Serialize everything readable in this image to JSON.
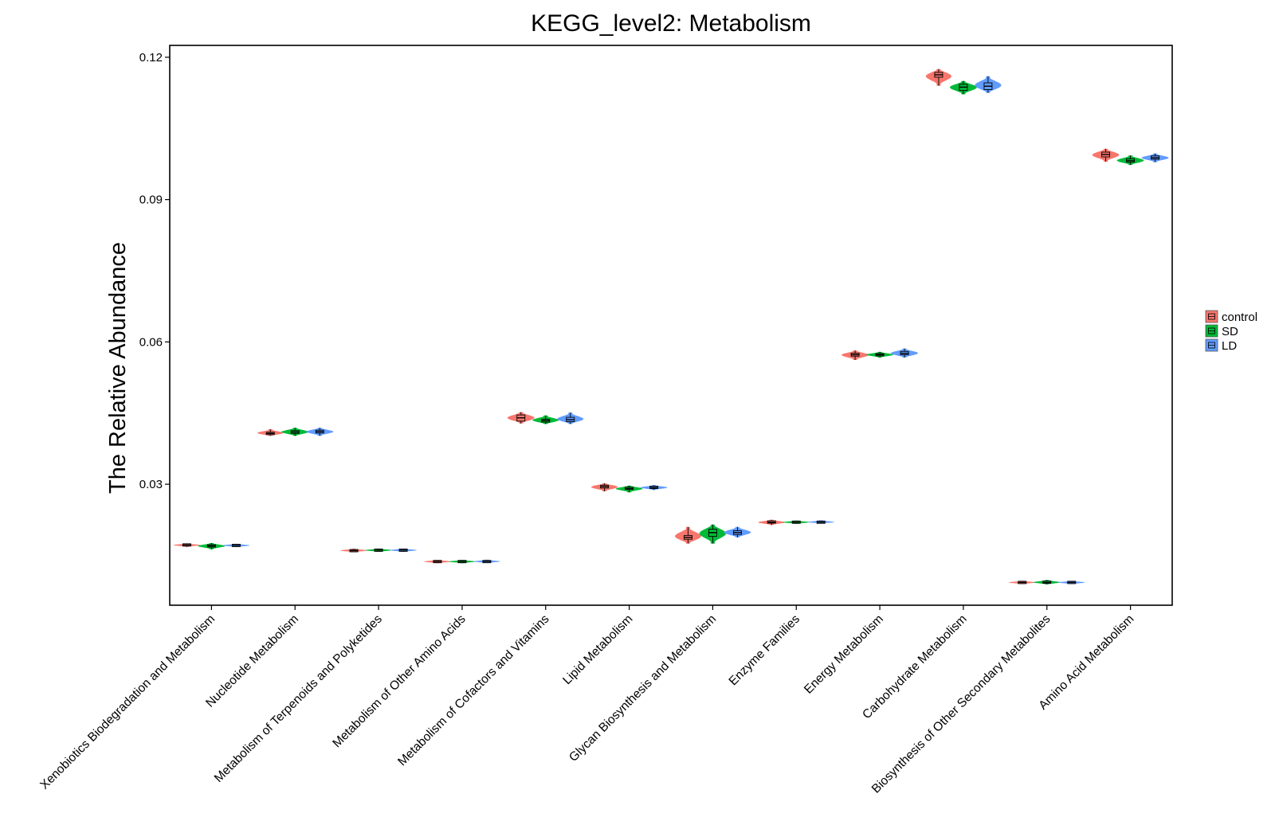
{
  "chart_data": {
    "type": "violin",
    "title": "KEGG_level2: Metabolism",
    "xlabel": "",
    "ylabel": "The Relative Abundance",
    "ylim": [
      0.0045,
      0.1225
    ],
    "yticks": [
      0.03,
      0.06,
      0.09,
      0.12
    ],
    "ytick_labels": [
      "0.03",
      "0.06",
      "0.09",
      "0.12"
    ],
    "grid": false,
    "legend_position": "right",
    "categories": [
      "Xenobiotics Biodegradation and Metabolism",
      "Nucleotide Metabolism",
      "Metabolism of Terpenoids and Polyketides",
      "Metabolism of Other Amino Acids",
      "Metabolism of Cofactors and Vitamins",
      "Lipid Metabolism",
      "Glycan Biosynthesis and Metabolism",
      "Enzyme Families",
      "Energy Metabolism",
      "Carbohydrate Metabolism",
      "Biosynthesis of Other Secondary Metabolites",
      "Amino Acid Metabolism"
    ],
    "series": [
      {
        "name": "control",
        "color": "#F8766D",
        "values": [
          {
            "median": 0.0172,
            "q1": 0.0171,
            "q3": 0.0173,
            "min": 0.0168,
            "max": 0.0175
          },
          {
            "median": 0.0407,
            "q1": 0.0405,
            "q3": 0.0409,
            "min": 0.0402,
            "max": 0.0416
          },
          {
            "median": 0.016,
            "q1": 0.0159,
            "q3": 0.0161,
            "min": 0.0157,
            "max": 0.0164
          },
          {
            "median": 0.0137,
            "q1": 0.0136,
            "q3": 0.0138,
            "min": 0.0134,
            "max": 0.014
          },
          {
            "median": 0.044,
            "q1": 0.0433,
            "q3": 0.0446,
            "min": 0.0428,
            "max": 0.0452
          },
          {
            "median": 0.0295,
            "q1": 0.0292,
            "q3": 0.0298,
            "min": 0.0285,
            "max": 0.0302
          },
          {
            "median": 0.0188,
            "q1": 0.0184,
            "q3": 0.0192,
            "min": 0.0175,
            "max": 0.021
          },
          {
            "median": 0.022,
            "q1": 0.0219,
            "q3": 0.0222,
            "min": 0.0214,
            "max": 0.0225
          },
          {
            "median": 0.0573,
            "q1": 0.057,
            "q3": 0.0576,
            "min": 0.0562,
            "max": 0.0582
          },
          {
            "median": 0.1163,
            "q1": 0.1158,
            "q3": 0.1168,
            "min": 0.114,
            "max": 0.1175
          },
          {
            "median": 0.0093,
            "q1": 0.0092,
            "q3": 0.0094,
            "min": 0.009,
            "max": 0.0096
          },
          {
            "median": 0.0995,
            "q1": 0.099,
            "q3": 0.1,
            "min": 0.098,
            "max": 0.1007
          }
        ]
      },
      {
        "name": "SD",
        "color": "#00BA38",
        "values": [
          {
            "median": 0.017,
            "q1": 0.0168,
            "q3": 0.0172,
            "min": 0.0163,
            "max": 0.0176
          },
          {
            "median": 0.041,
            "q1": 0.0407,
            "q3": 0.0413,
            "min": 0.0402,
            "max": 0.0419
          },
          {
            "median": 0.0161,
            "q1": 0.016,
            "q3": 0.0162,
            "min": 0.0158,
            "max": 0.0164
          },
          {
            "median": 0.0137,
            "q1": 0.0136,
            "q3": 0.0138,
            "min": 0.0134,
            "max": 0.014
          },
          {
            "median": 0.0434,
            "q1": 0.0431,
            "q3": 0.0437,
            "min": 0.0427,
            "max": 0.0445
          },
          {
            "median": 0.0291,
            "q1": 0.0289,
            "q3": 0.0294,
            "min": 0.0283,
            "max": 0.0297
          },
          {
            "median": 0.0198,
            "q1": 0.019,
            "q3": 0.0205,
            "min": 0.0175,
            "max": 0.0215
          },
          {
            "median": 0.022,
            "q1": 0.0219,
            "q3": 0.0221,
            "min": 0.0217,
            "max": 0.0223
          },
          {
            "median": 0.0573,
            "q1": 0.0571,
            "q3": 0.0575,
            "min": 0.0567,
            "max": 0.0579
          },
          {
            "median": 0.1137,
            "q1": 0.113,
            "q3": 0.1143,
            "min": 0.1122,
            "max": 0.115
          },
          {
            "median": 0.0093,
            "q1": 0.0092,
            "q3": 0.0095,
            "min": 0.0089,
            "max": 0.0098
          },
          {
            "median": 0.0982,
            "q1": 0.0979,
            "q3": 0.0986,
            "min": 0.0973,
            "max": 0.0993
          }
        ]
      },
      {
        "name": "LD",
        "color": "#619CFF",
        "values": [
          {
            "median": 0.0171,
            "q1": 0.017,
            "q3": 0.0172,
            "min": 0.0168,
            "max": 0.0174
          },
          {
            "median": 0.0411,
            "q1": 0.0408,
            "q3": 0.0414,
            "min": 0.0402,
            "max": 0.0419
          },
          {
            "median": 0.0161,
            "q1": 0.016,
            "q3": 0.0162,
            "min": 0.0158,
            "max": 0.0164
          },
          {
            "median": 0.0137,
            "q1": 0.0136,
            "q3": 0.0138,
            "min": 0.0135,
            "max": 0.014
          },
          {
            "median": 0.0436,
            "q1": 0.0432,
            "q3": 0.0441,
            "min": 0.0427,
            "max": 0.0451
          },
          {
            "median": 0.0293,
            "q1": 0.0292,
            "q3": 0.0295,
            "min": 0.0288,
            "max": 0.0298
          },
          {
            "median": 0.0198,
            "q1": 0.0194,
            "q3": 0.0202,
            "min": 0.0188,
            "max": 0.021
          },
          {
            "median": 0.022,
            "q1": 0.0219,
            "q3": 0.0221,
            "min": 0.0218,
            "max": 0.0223
          },
          {
            "median": 0.0576,
            "q1": 0.0573,
            "q3": 0.058,
            "min": 0.0567,
            "max": 0.0586
          },
          {
            "median": 0.1139,
            "q1": 0.1132,
            "q3": 0.1146,
            "min": 0.1125,
            "max": 0.116
          },
          {
            "median": 0.0093,
            "q1": 0.0092,
            "q3": 0.0094,
            "min": 0.009,
            "max": 0.0096
          },
          {
            "median": 0.0988,
            "q1": 0.0985,
            "q3": 0.0992,
            "min": 0.0979,
            "max": 0.0997
          }
        ]
      }
    ]
  }
}
